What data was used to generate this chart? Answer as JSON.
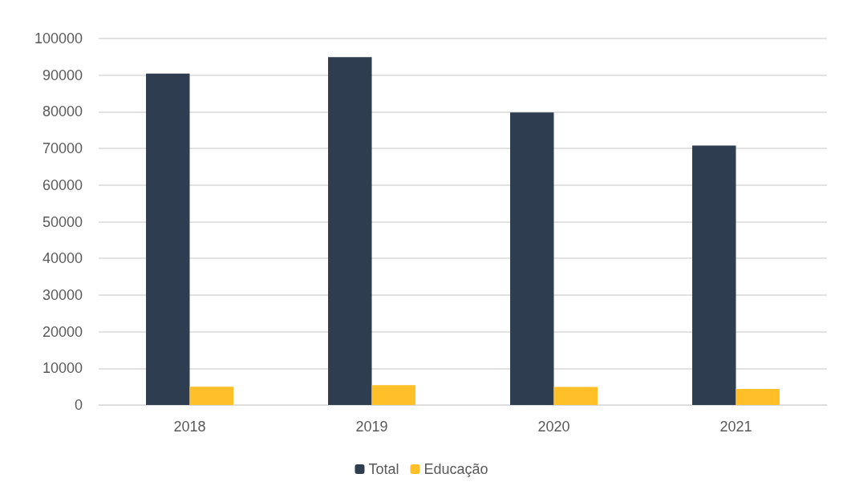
{
  "chart_data": {
    "type": "bar",
    "categories": [
      "2018",
      "2019",
      "2020",
      "2021"
    ],
    "series": [
      {
        "name": "Total",
        "color": "#2e3d50",
        "values": [
          90400,
          94900,
          79800,
          70800
        ]
      },
      {
        "name": "Educação",
        "color": "#ffbf28",
        "values": [
          5000,
          5400,
          4900,
          4400
        ]
      }
    ],
    "ylim": [
      0,
      100000
    ],
    "yticks": [
      0,
      10000,
      20000,
      30000,
      40000,
      50000,
      60000,
      70000,
      80000,
      90000,
      100000
    ],
    "grid": "y",
    "legend": "bottom"
  }
}
